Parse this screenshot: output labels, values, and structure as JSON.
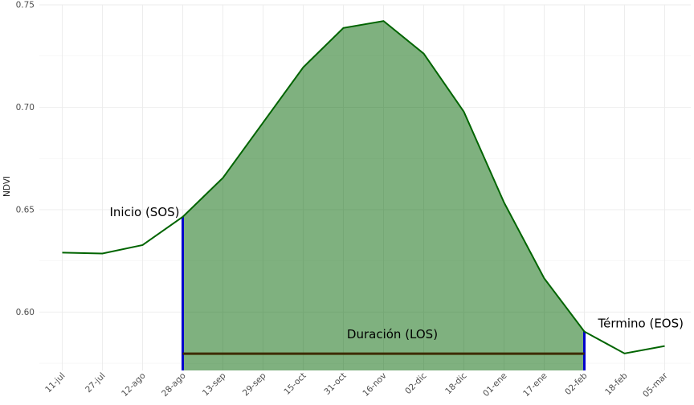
{
  "chart_data": {
    "type": "area",
    "title": "",
    "xlabel": "",
    "ylabel": "NDVI",
    "ylim": [
      0.5715,
      0.75
    ],
    "yticks": [
      "0.60",
      "0.65",
      "0.70",
      "0.75"
    ],
    "ytick_values": [
      0.6,
      0.65,
      0.7,
      0.75
    ],
    "categories": [
      "11-jul",
      "27-jul",
      "12-ago",
      "28-ago",
      "13-sep",
      "29-sep",
      "15-oct",
      "31-oct",
      "16-nov",
      "02-dic",
      "18-dic",
      "01-ene",
      "17-ene",
      "02-feb",
      "18-feb",
      "05-mar"
    ],
    "series": [
      {
        "values": [
          0.629,
          0.6286,
          0.6327,
          0.6465,
          0.6655,
          0.6925,
          0.7195,
          0.7387,
          0.7421,
          0.7262,
          0.6978,
          0.6535,
          0.6165,
          0.5905,
          0.5798,
          0.5834
        ],
        "color": "#006400"
      }
    ],
    "shaded_region": {
      "from": "28-ago",
      "to": "02-feb",
      "color": "#006400",
      "opacity": 0.5
    },
    "markers": [
      {
        "at": "28-ago",
        "color": "#0000cc"
      },
      {
        "at": "02-feb",
        "color": "#0000cc"
      }
    ],
    "duration_line": {
      "from": "28-ago",
      "to": "02-feb",
      "y": 0.5797,
      "color": "#3d2b00"
    },
    "annotations": [
      {
        "text": "Inicio (SOS)",
        "at": "28-ago",
        "y": 0.6465,
        "anchor": "end"
      },
      {
        "text": "Término (EOS)",
        "at": "02-feb",
        "y": 0.5905,
        "anchor": "start"
      },
      {
        "text": "Duración (LOS)",
        "at": "16-nov",
        "y": 0.5797,
        "anchor": "middle"
      }
    ],
    "grid": true,
    "legend": "none"
  }
}
